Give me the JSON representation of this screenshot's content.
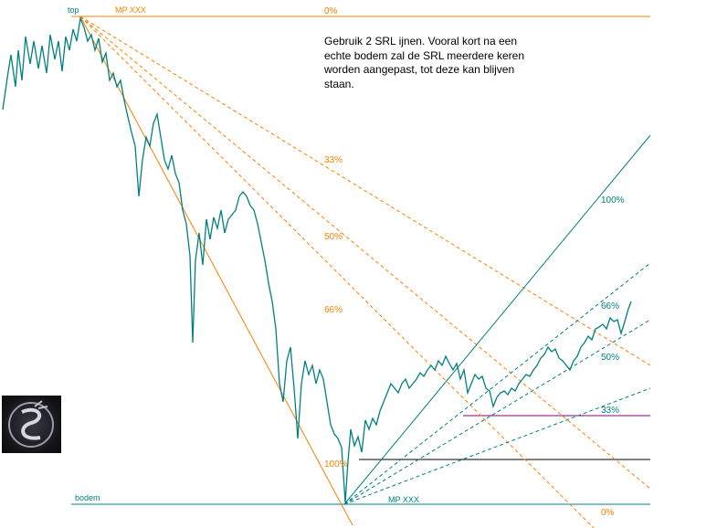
{
  "chart_data": {
    "type": "line",
    "title": "",
    "xlabel": "",
    "ylabel": "",
    "colors": {
      "price": "#008080",
      "fan_down": "#ff8000",
      "fan_up": "#008080",
      "hline_dark": "#000000",
      "hline_purple": "#800080"
    },
    "annotations": {
      "top_label": "top",
      "bottom_label": "bodem",
      "mp_top": "MP XXX",
      "mp_bottom": "MP XXX",
      "note": "Gebruik 2 SRL ijnen.  Vooral kort na een echte bodem zal de SRL meerdere keren worden aangepast, tot deze kan blijven staan."
    },
    "down_fan_levels": [
      "0%",
      "33%",
      "50%",
      "66%",
      "100%",
      "0%"
    ],
    "up_fan_levels": [
      "100%",
      "66%",
      "50%",
      "33%"
    ],
    "price_path": [
      [
        3,
        120
      ],
      [
        8,
        85
      ],
      [
        12,
        60
      ],
      [
        17,
        95
      ],
      [
        20,
        55
      ],
      [
        24,
        88
      ],
      [
        28,
        40
      ],
      [
        33,
        70
      ],
      [
        37,
        45
      ],
      [
        42,
        75
      ],
      [
        46,
        50
      ],
      [
        51,
        80
      ],
      [
        55,
        38
      ],
      [
        60,
        65
      ],
      [
        64,
        45
      ],
      [
        68,
        78
      ],
      [
        72,
        40
      ],
      [
        76,
        55
      ],
      [
        80,
        32
      ],
      [
        84,
        45
      ],
      [
        88,
        20
      ],
      [
        92,
        30
      ],
      [
        96,
        45
      ],
      [
        100,
        38
      ],
      [
        104,
        55
      ],
      [
        108,
        42
      ],
      [
        112,
        68
      ],
      [
        116,
        58
      ],
      [
        120,
        88
      ],
      [
        124,
        80
      ],
      [
        128,
        95
      ],
      [
        132,
        88
      ],
      [
        136,
        110
      ],
      [
        140,
        128
      ],
      [
        144,
        145
      ],
      [
        148,
        160
      ],
      [
        152,
        215
      ],
      [
        156,
        175
      ],
      [
        160,
        150
      ],
      [
        164,
        160
      ],
      [
        168,
        135
      ],
      [
        172,
        125
      ],
      [
        176,
        150
      ],
      [
        180,
        175
      ],
      [
        184,
        185
      ],
      [
        188,
        170
      ],
      [
        192,
        190
      ],
      [
        196,
        200
      ],
      [
        200,
        230
      ],
      [
        204,
        245
      ],
      [
        208,
        280
      ],
      [
        211,
        375
      ],
      [
        214,
        285
      ],
      [
        218,
        255
      ],
      [
        222,
        290
      ],
      [
        226,
        240
      ],
      [
        230,
        262
      ],
      [
        234,
        238
      ],
      [
        238,
        250
      ],
      [
        242,
        230
      ],
      [
        246,
        255
      ],
      [
        250,
        240
      ],
      [
        254,
        235
      ],
      [
        258,
        230
      ],
      [
        262,
        215
      ],
      [
        266,
        210
      ],
      [
        270,
        215
      ],
      [
        274,
        225
      ],
      [
        278,
        230
      ],
      [
        282,
        245
      ],
      [
        286,
        265
      ],
      [
        290,
        285
      ],
      [
        294,
        310
      ],
      [
        298,
        330
      ],
      [
        302,
        360
      ],
      [
        306,
        420
      ],
      [
        310,
        440
      ],
      [
        314,
        395
      ],
      [
        318,
        380
      ],
      [
        322,
        425
      ],
      [
        326,
        480
      ],
      [
        330,
        420
      ],
      [
        334,
        395
      ],
      [
        338,
        410
      ],
      [
        342,
        400
      ],
      [
        346,
        420
      ],
      [
        350,
        405
      ],
      [
        354,
        415
      ],
      [
        358,
        440
      ],
      [
        362,
        465
      ],
      [
        366,
        475
      ],
      [
        370,
        480
      ],
      [
        374,
        490
      ],
      [
        378,
        550
      ],
      [
        381,
        505
      ],
      [
        384,
        470
      ],
      [
        388,
        488
      ],
      [
        392,
        478
      ],
      [
        396,
        495
      ],
      [
        400,
        460
      ],
      [
        404,
        470
      ],
      [
        408,
        458
      ],
      [
        412,
        465
      ],
      [
        416,
        450
      ],
      [
        420,
        440
      ],
      [
        424,
        430
      ],
      [
        428,
        420
      ],
      [
        432,
        425
      ],
      [
        436,
        430
      ],
      [
        440,
        420
      ],
      [
        444,
        415
      ],
      [
        448,
        425
      ],
      [
        452,
        420
      ],
      [
        456,
        415
      ],
      [
        460,
        408
      ],
      [
        464,
        412
      ],
      [
        468,
        405
      ],
      [
        472,
        400
      ],
      [
        476,
        405
      ],
      [
        480,
        395
      ],
      [
        484,
        400
      ],
      [
        488,
        390
      ],
      [
        492,
        398
      ],
      [
        496,
        405
      ],
      [
        500,
        398
      ],
      [
        504,
        415
      ],
      [
        508,
        405
      ],
      [
        512,
        430
      ],
      [
        516,
        420
      ],
      [
        520,
        410
      ],
      [
        524,
        415
      ],
      [
        528,
        412
      ],
      [
        532,
        425
      ],
      [
        536,
        428
      ],
      [
        540,
        445
      ],
      [
        544,
        435
      ],
      [
        548,
        430
      ],
      [
        552,
        428
      ],
      [
        556,
        432
      ],
      [
        560,
        425
      ],
      [
        564,
        428
      ],
      [
        568,
        420
      ],
      [
        572,
        415
      ],
      [
        576,
        410
      ],
      [
        580,
        412
      ],
      [
        584,
        405
      ],
      [
        588,
        400
      ],
      [
        592,
        392
      ],
      [
        596,
        388
      ],
      [
        600,
        380
      ],
      [
        604,
        385
      ],
      [
        608,
        382
      ],
      [
        612,
        392
      ],
      [
        616,
        395
      ],
      [
        620,
        400
      ],
      [
        624,
        405
      ],
      [
        628,
        395
      ],
      [
        632,
        390
      ],
      [
        636,
        380
      ],
      [
        640,
        375
      ],
      [
        644,
        368
      ],
      [
        648,
        372
      ],
      [
        652,
        360
      ],
      [
        656,
        358
      ],
      [
        660,
        355
      ],
      [
        664,
        360
      ],
      [
        668,
        348
      ],
      [
        672,
        352
      ],
      [
        676,
        350
      ],
      [
        680,
        365
      ],
      [
        684,
        352
      ],
      [
        688,
        338
      ],
      [
        691,
        330
      ]
    ]
  }
}
